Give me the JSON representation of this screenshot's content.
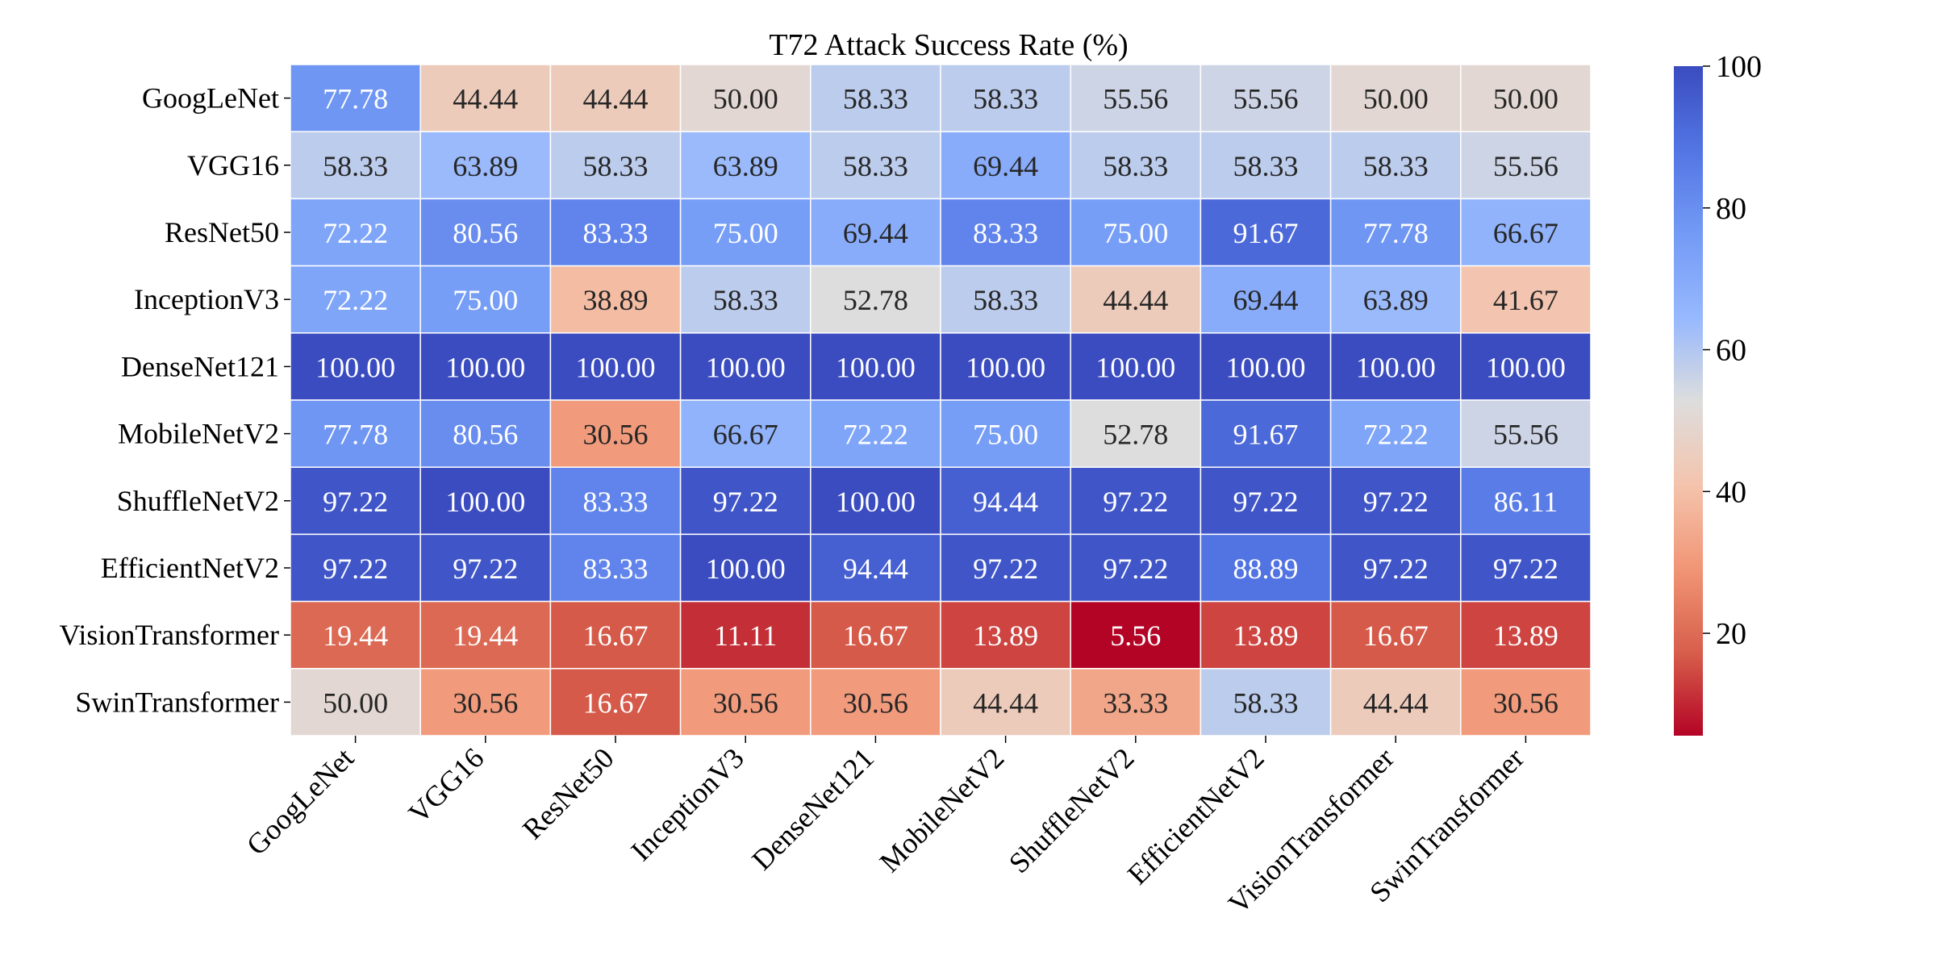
{
  "chart_data": {
    "type": "heatmap",
    "title": "T72 Attack Success Rate (%)",
    "xlabel": "",
    "ylabel": "",
    "rows": [
      "GoogLeNet",
      "VGG16",
      "ResNet50",
      "InceptionV3",
      "DenseNet121",
      "MobileNetV2",
      "ShuffleNetV2",
      "EfficientNetV2",
      "VisionTransformer",
      "SwinTransformer"
    ],
    "columns": [
      "GoogLeNet",
      "VGG16",
      "ResNet50",
      "InceptionV3",
      "DenseNet121",
      "MobileNetV2",
      "ShuffleNetV2",
      "EfficientNetV2",
      "VisionTransformer",
      "SwinTransformer"
    ],
    "values": [
      [
        77.78,
        44.44,
        44.44,
        50.0,
        58.33,
        58.33,
        55.56,
        55.56,
        50.0,
        50.0
      ],
      [
        58.33,
        63.89,
        58.33,
        63.89,
        58.33,
        69.44,
        58.33,
        58.33,
        58.33,
        55.56
      ],
      [
        72.22,
        80.56,
        83.33,
        75.0,
        69.44,
        83.33,
        75.0,
        91.67,
        77.78,
        66.67
      ],
      [
        72.22,
        75.0,
        38.89,
        58.33,
        52.78,
        58.33,
        44.44,
        69.44,
        63.89,
        41.67
      ],
      [
        100.0,
        100.0,
        100.0,
        100.0,
        100.0,
        100.0,
        100.0,
        100.0,
        100.0,
        100.0
      ],
      [
        77.78,
        80.56,
        30.56,
        66.67,
        72.22,
        75.0,
        52.78,
        91.67,
        72.22,
        55.56
      ],
      [
        97.22,
        100.0,
        83.33,
        97.22,
        100.0,
        94.44,
        97.22,
        97.22,
        97.22,
        86.11
      ],
      [
        97.22,
        97.22,
        83.33,
        100.0,
        94.44,
        97.22,
        97.22,
        88.89,
        97.22,
        97.22
      ],
      [
        19.44,
        19.44,
        16.67,
        11.11,
        16.67,
        13.89,
        5.56,
        13.89,
        16.67,
        13.89
      ],
      [
        50.0,
        30.56,
        16.67,
        30.56,
        30.56,
        44.44,
        33.33,
        58.33,
        44.44,
        30.56
      ]
    ],
    "colormap": "coolwarm_r",
    "vmin": 5.56,
    "vmax": 100,
    "colorbar_ticks": [
      20,
      40,
      60,
      80,
      100
    ],
    "cell_label_format": "0.00"
  }
}
